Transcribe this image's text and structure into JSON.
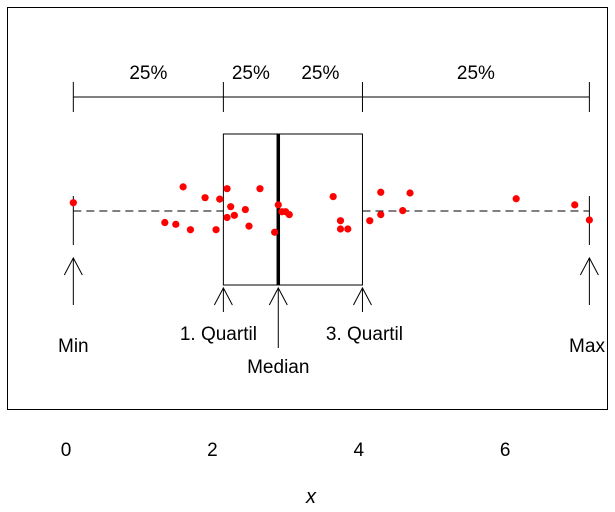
{
  "chart_data": {
    "type": "scatter",
    "title": "",
    "xlabel": "x",
    "ylabel": "",
    "xlim": [
      -0.2,
      7.2
    ],
    "xticks": [
      "0",
      "2",
      "4",
      "6"
    ],
    "xtick_values": [
      0,
      2,
      4,
      6
    ],
    "box": {
      "min": 0.1,
      "q1": 2.15,
      "median": 2.9,
      "q3": 4.05,
      "max": 7.15
    },
    "segment_labels": [
      "25%",
      "25%",
      "25%",
      "25%"
    ],
    "annotations": {
      "min": "Min",
      "q1": "1. Quartil",
      "median": "Median",
      "q3": "3. Quartil",
      "max": "Max"
    },
    "points": {
      "x": [
        0.1,
        1.35,
        1.5,
        1.6,
        1.7,
        1.9,
        2.05,
        2.1,
        2.2,
        2.2,
        2.25,
        2.3,
        2.45,
        2.5,
        2.65,
        2.85,
        2.9,
        2.95,
        3.0,
        3.05,
        3.65,
        3.75,
        3.75,
        3.85,
        4.15,
        4.3,
        4.3,
        4.6,
        4.7,
        6.15,
        6.95,
        7.15
      ],
      "jitter": [
        0.23,
        -0.32,
        -0.37,
        0.67,
        -0.52,
        0.37,
        -0.52,
        0.33,
        -0.18,
        0.62,
        0.12,
        -0.12,
        0.04,
        -0.42,
        0.62,
        -0.59,
        0.17,
        -0.02,
        -0.02,
        -0.1,
        0.4,
        -0.27,
        -0.5,
        -0.5,
        -0.27,
        0.52,
        -0.1,
        0.01,
        0.5,
        0.34,
        0.17,
        -0.25
      ],
      "color": "#ff0000"
    }
  }
}
